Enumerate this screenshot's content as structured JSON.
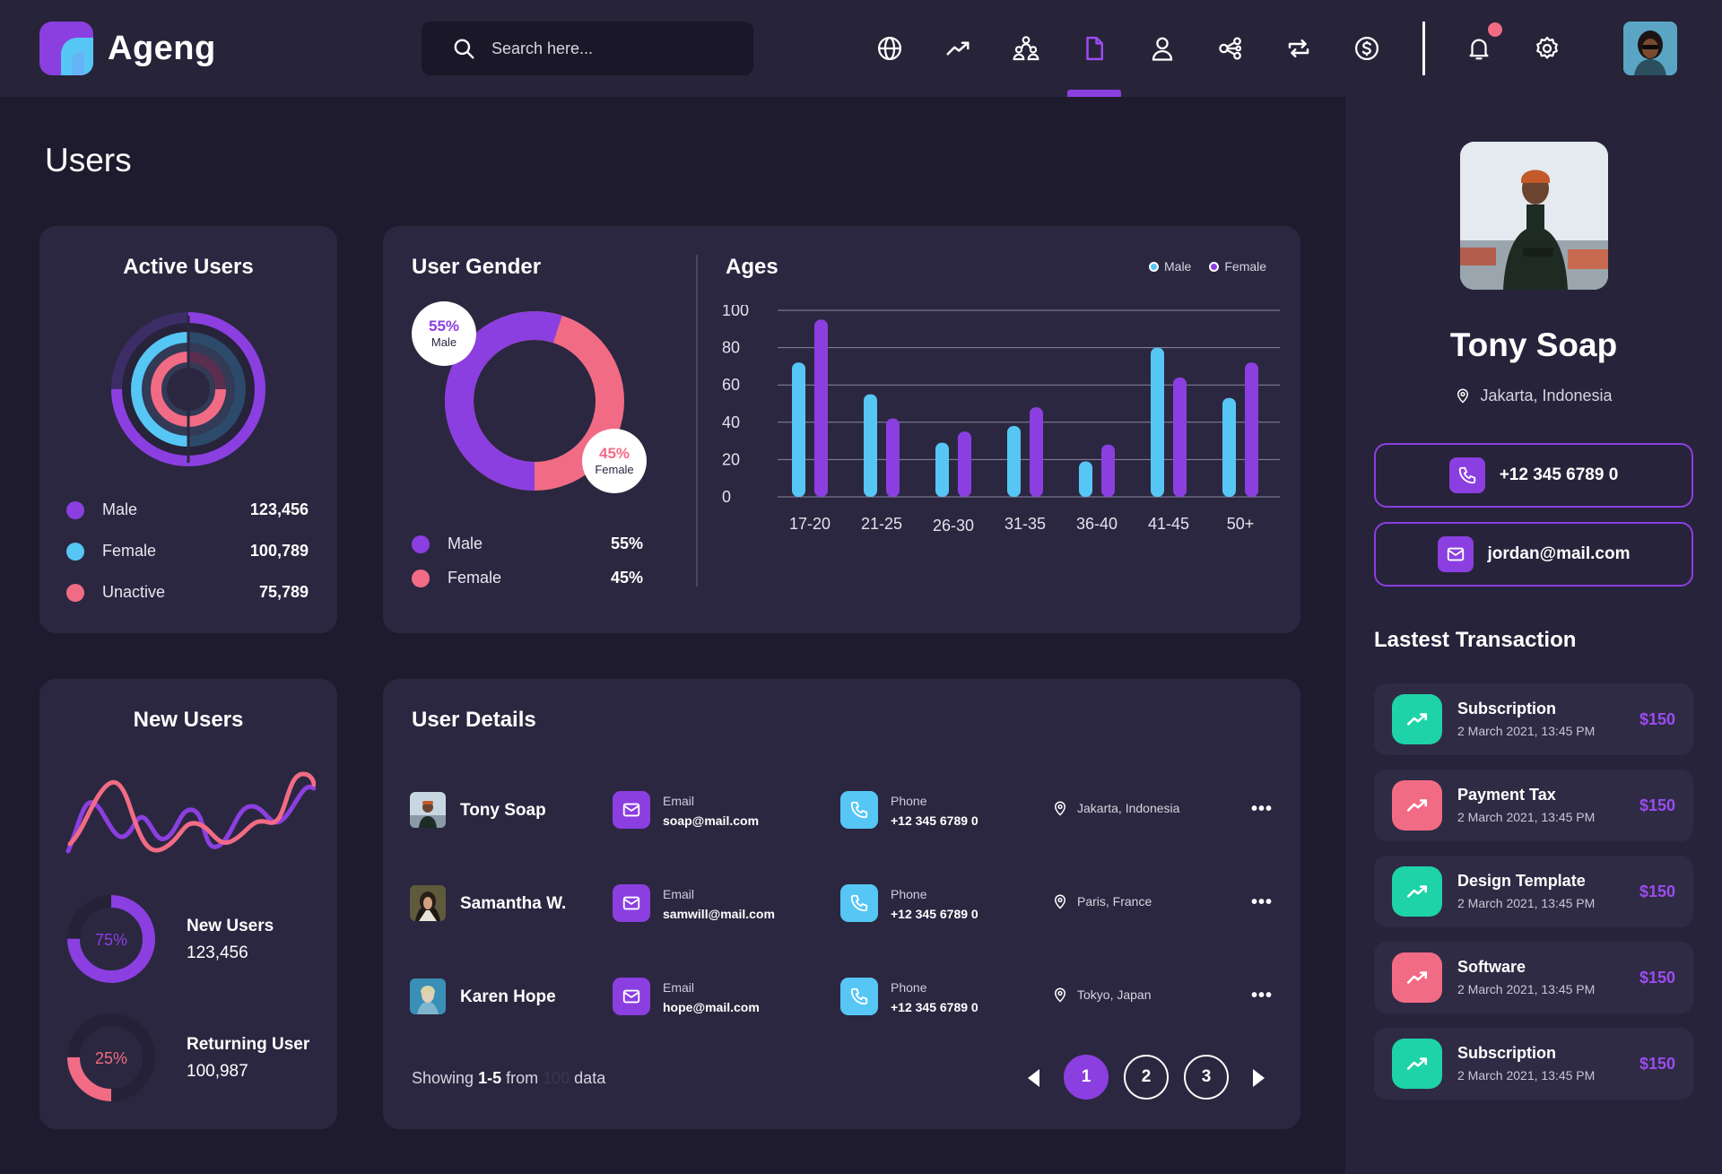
{
  "app": {
    "name": "Ageng"
  },
  "search": {
    "placeholder": "Search here..."
  },
  "nav": {
    "items": [
      "globe-icon",
      "trending-icon",
      "team-icon",
      "document-icon",
      "user-icon",
      "share-icon",
      "repeat-icon",
      "dollar-icon"
    ],
    "active": "document-icon"
  },
  "page": {
    "title": "Users"
  },
  "active_users": {
    "title": "Active Users",
    "items": [
      {
        "label": "Male",
        "value": "123,456",
        "color": "#8b3fe0"
      },
      {
        "label": "Female",
        "value": "100,789",
        "color": "#56c6f5"
      },
      {
        "label": "Unactive",
        "value": "75,789",
        "color": "#f26b85"
      }
    ]
  },
  "user_gender": {
    "title": "User Gender",
    "male_pct": "55%",
    "male_label": "Male",
    "female_pct": "45%",
    "female_label": "Female",
    "legend": [
      {
        "label": "Male",
        "value": "55%",
        "color": "#8b3fe0"
      },
      {
        "label": "Female",
        "value": "45%",
        "color": "#f26b85"
      }
    ]
  },
  "chart_data": {
    "type": "bar",
    "title": "Ages",
    "categories": [
      "17-20",
      "21-25",
      "26-30",
      "31-35",
      "36-40",
      "41-45",
      "50+"
    ],
    "series": [
      {
        "name": "Male",
        "color": "#56c6f5",
        "values": [
          72,
          55,
          29,
          38,
          19,
          80,
          53
        ]
      },
      {
        "name": "Female",
        "color": "#8b3fe0",
        "values": [
          95,
          42,
          35,
          48,
          28,
          64,
          72
        ]
      }
    ],
    "yticks": [
      "100",
      "80",
      "60",
      "40",
      "20",
      "0"
    ],
    "ylim": [
      0,
      100
    ],
    "legend_position": "top-right"
  },
  "new_users": {
    "title": "New Users",
    "stats": [
      {
        "pct": "75%",
        "label": "New Users",
        "value": "123,456",
        "color": "#8b3fe0",
        "fraction": 0.75
      },
      {
        "pct": "25%",
        "label": "Returning User",
        "value": "100,987",
        "color": "#f26b85",
        "fraction": 0.25
      }
    ]
  },
  "user_details": {
    "title": "User Details",
    "email_label": "Email",
    "phone_label": "Phone",
    "rows": [
      {
        "name": "Tony Soap",
        "email": "soap@mail.com",
        "phone": "+12 345 6789 0",
        "location": "Jakarta, Indonesia"
      },
      {
        "name": "Samantha W.",
        "email": "samwill@mail.com",
        "phone": "+12 345 6789 0",
        "location": "Paris, France"
      },
      {
        "name": "Karen Hope",
        "email": "hope@mail.com",
        "phone": "+12 345 6789 0",
        "location": "Tokyo, Japan"
      }
    ],
    "showing_prefix": "Showing",
    "showing_range": "1-5",
    "showing_from": "from",
    "showing_total": "100",
    "showing_suffix": "data",
    "pages": [
      "1",
      "2",
      "3"
    ],
    "current_page": "1"
  },
  "profile": {
    "name": "Tony Soap",
    "location": "Jakarta, Indonesia",
    "phone": "+12 345 6789 0",
    "email": "jordan@mail.com"
  },
  "transactions": {
    "title": "Lastest Transaction",
    "items": [
      {
        "name": "Subscription",
        "date": "2 March 2021, 13:45 PM",
        "amount": "$150",
        "color": "#1ed3a8"
      },
      {
        "name": "Payment Tax",
        "date": "2 March 2021, 13:45 PM",
        "amount": "$150",
        "color": "#f26b85"
      },
      {
        "name": "Design Template",
        "date": "2 March 2021, 13:45 PM",
        "amount": "$150",
        "color": "#1ed3a8"
      },
      {
        "name": "Software",
        "date": "2 March 2021, 13:45 PM",
        "amount": "$150",
        "color": "#f26b85"
      },
      {
        "name": "Subscription",
        "date": "2 March 2021, 13:45 PM",
        "amount": "$150",
        "color": "#1ed3a8"
      }
    ]
  }
}
